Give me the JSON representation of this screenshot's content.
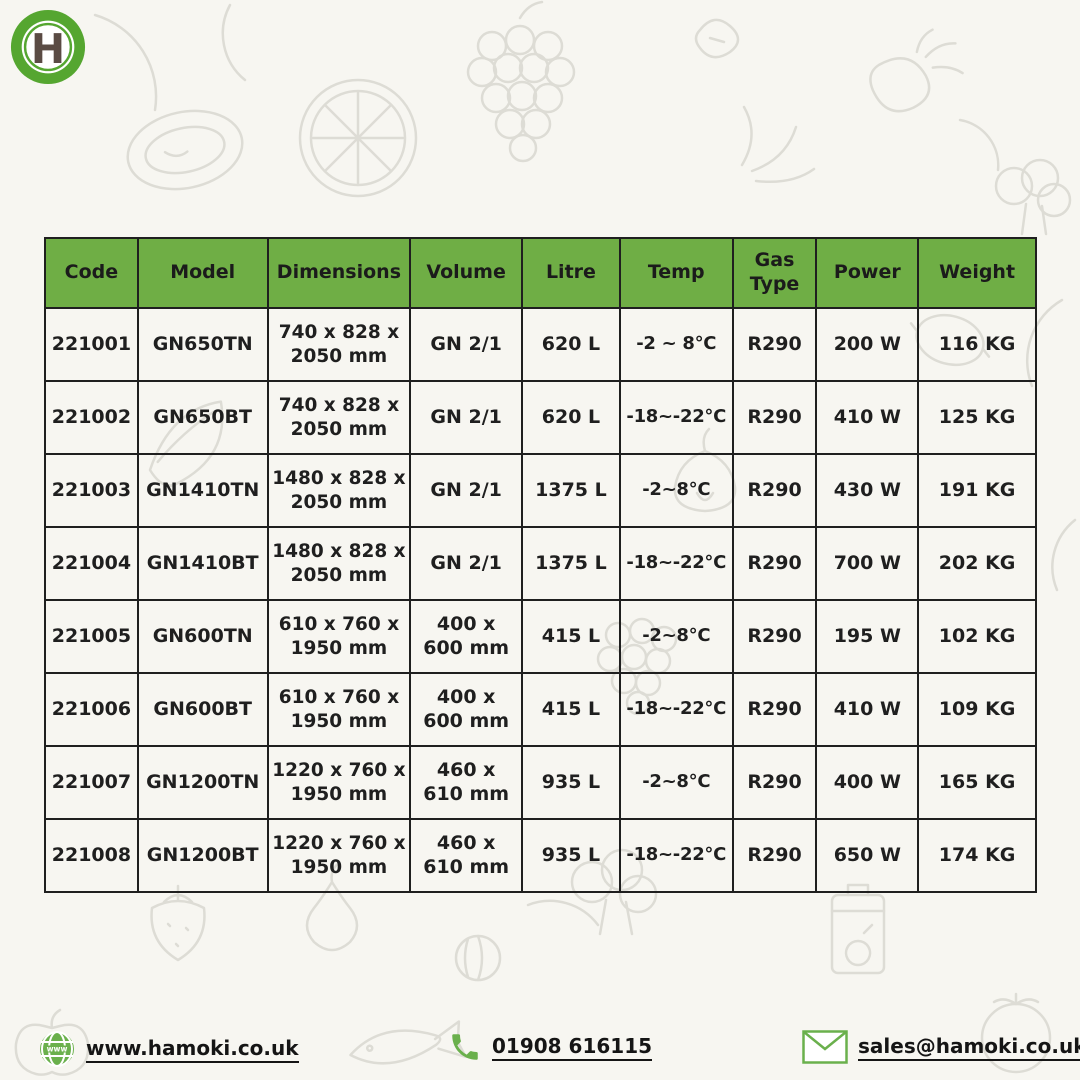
{
  "logo": {
    "letter": "H"
  },
  "table": {
    "headers": [
      "Code",
      "Model",
      "Dimensions",
      "Volume",
      "Litre",
      "Temp",
      "Gas Type",
      "Power",
      "Weight"
    ],
    "rows": [
      [
        "221001",
        "GN650TN",
        "740 x 828 x 2050 mm",
        "GN 2/1",
        "620 L",
        "-2 ~ 8°C",
        "R290",
        "200 W",
        "116 KG"
      ],
      [
        "221002",
        "GN650BT",
        "740 x 828 x 2050 mm",
        "GN 2/1",
        "620 L",
        "-18~-22°C",
        "R290",
        "410 W",
        "125 KG"
      ],
      [
        "221003",
        "GN1410TN",
        "1480 x 828 x 2050 mm",
        "GN 2/1",
        "1375 L",
        "-2~8°C",
        "R290",
        "430 W",
        "191 KG"
      ],
      [
        "221004",
        "GN1410BT",
        "1480 x 828 x 2050 mm",
        "GN 2/1",
        "1375 L",
        "-18~-22°C",
        "R290",
        "700 W",
        "202 KG"
      ],
      [
        "221005",
        "GN600TN",
        "610 x 760 x 1950 mm",
        "400 x 600 mm",
        "415 L",
        "-2~8°C",
        "R290",
        "195 W",
        "102 KG"
      ],
      [
        "221006",
        "GN600BT",
        "610 x 760 x 1950 mm",
        "400 x 600 mm",
        "415 L",
        "-18~-22°C",
        "R290",
        "410 W",
        "109 KG"
      ],
      [
        "221007",
        "GN1200TN",
        "1220 x 760 x 1950 mm",
        "460 x 610 mm",
        "935 L",
        "-2~8°C",
        "R290",
        "400 W",
        "165 KG"
      ],
      [
        "221008",
        "GN1200BT",
        "1220 x 760 x 1950 mm",
        "460 x 610 mm",
        "935 L",
        "-18~-22°C",
        "R290",
        "650 W",
        "174 KG"
      ]
    ]
  },
  "footer": {
    "website": "www.hamoki.co.uk",
    "phone": "01908 616115",
    "email": "sales@hamoki.co.uk"
  },
  "icons": [
    "globe-icon",
    "phone-icon",
    "envelope-icon",
    "hamoki-logo"
  ],
  "colors": {
    "header_green": "#6fae45",
    "logo_green": "#55a630",
    "icon_green": "#6ab04c",
    "text": "#1f1f1f",
    "background": "#f7f6f1",
    "doodle_stroke": "#dddcd5",
    "logo_letter_brown": "#5a4b44"
  }
}
